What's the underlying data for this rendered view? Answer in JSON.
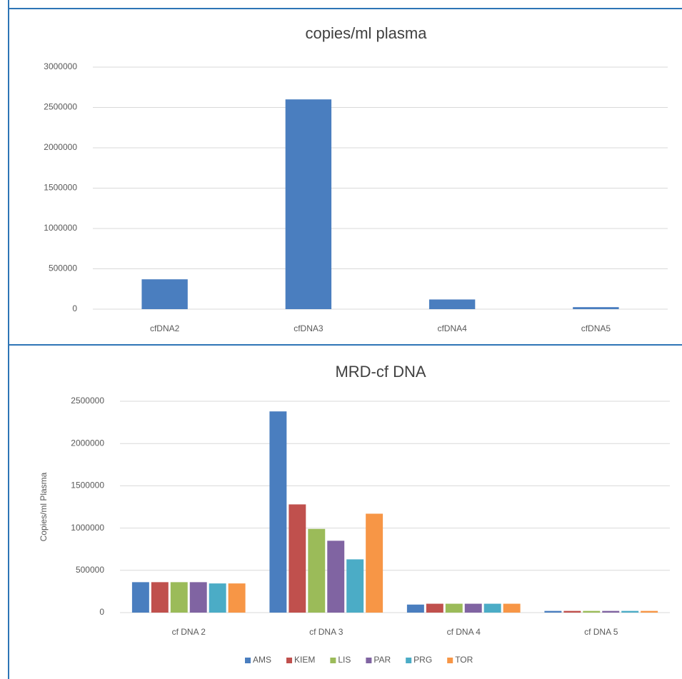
{
  "chart_data": [
    {
      "type": "bar",
      "title": "copies/ml plasma",
      "categories": [
        "cfDNA2",
        "cfDNA3",
        "cfDNA4",
        "cfDNA5"
      ],
      "series": [
        {
          "color": "#4a7ebf",
          "values": [
            370000,
            2600000,
            120000,
            25000
          ]
        }
      ],
      "ylim": [
        0,
        3000000
      ],
      "yticks": [
        0,
        500000,
        1000000,
        1500000,
        2000000,
        2500000,
        3000000
      ],
      "grid": true
    },
    {
      "type": "bar",
      "title": "MRD-cf DNA",
      "ylabel": "Copies/ml Plasma",
      "categories": [
        "cf DNA 2",
        "cf DNA 3",
        "cf DNA 4",
        "cf DNA 5"
      ],
      "series": [
        {
          "name": "AMS",
          "color": "#4a7ebf",
          "values": [
            360000,
            2380000,
            95000,
            20000
          ]
        },
        {
          "name": "KIEM",
          "color": "#c0504d",
          "values": [
            360000,
            1280000,
            105000,
            20000
          ]
        },
        {
          "name": "LIS",
          "color": "#9bbb59",
          "values": [
            360000,
            990000,
            105000,
            20000
          ]
        },
        {
          "name": "PAR",
          "color": "#8064a2",
          "values": [
            360000,
            850000,
            105000,
            20000
          ]
        },
        {
          "name": "PRG",
          "color": "#4bacc6",
          "values": [
            345000,
            630000,
            105000,
            20000
          ]
        },
        {
          "name": "TOR",
          "color": "#f79646",
          "values": [
            345000,
            1170000,
            105000,
            20000
          ]
        }
      ],
      "ylim": [
        0,
        2500000
      ],
      "yticks": [
        0,
        500000,
        1000000,
        1500000,
        2000000,
        2500000
      ],
      "grid": true,
      "legend": "bottom"
    }
  ]
}
